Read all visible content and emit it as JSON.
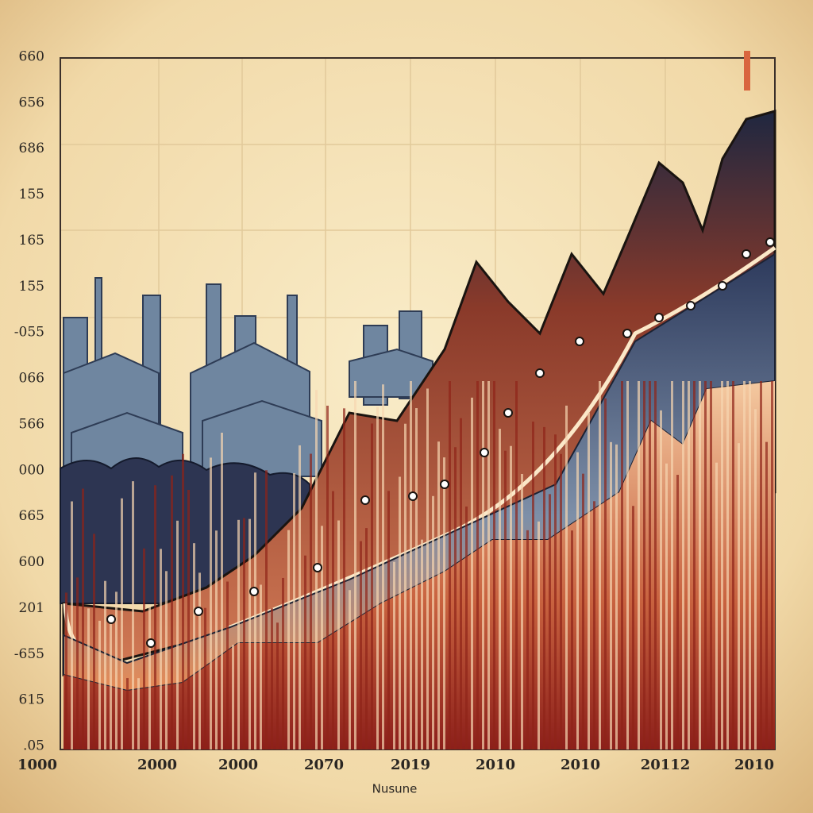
{
  "y_axis_labels": [
    "660",
    "656",
    "686",
    "155",
    "165",
    "155",
    "-055",
    "066",
    "566",
    "000",
    "665",
    "600",
    "201",
    "-655",
    "615",
    ".05"
  ],
  "x_axis_labels": [
    "1000",
    "2000",
    "2000",
    "2070",
    "2019",
    "2010",
    "2010",
    "20112",
    "2010"
  ],
  "x_axis_title": "Nusune"
}
